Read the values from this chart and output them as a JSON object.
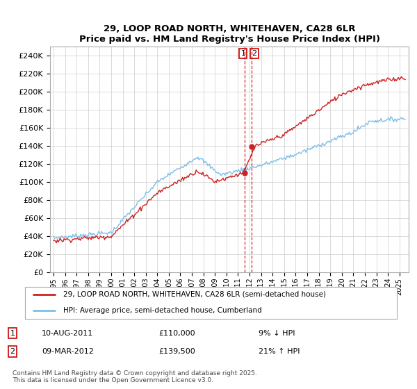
{
  "title": "29, LOOP ROAD NORTH, WHITEHAVEN, CA28 6LR",
  "subtitle": "Price paid vs. HM Land Registry's House Price Index (HPI)",
  "legend_line1": "29, LOOP ROAD NORTH, WHITEHAVEN, CA28 6LR (semi-detached house)",
  "legend_line2": "HPI: Average price, semi-detached house, Cumberland",
  "annotation1_date": "10-AUG-2011",
  "annotation1_price": "£110,000",
  "annotation1_change": "9% ↓ HPI",
  "annotation2_date": "09-MAR-2012",
  "annotation2_price": "£139,500",
  "annotation2_change": "21% ↑ HPI",
  "footer": "Contains HM Land Registry data © Crown copyright and database right 2025.\nThis data is licensed under the Open Government Licence v3.0.",
  "hpi_color": "#7bbfea",
  "price_color": "#cc2222",
  "vline_color": "#cc0000",
  "ylim": [
    0,
    250000
  ],
  "yticks": [
    0,
    20000,
    40000,
    60000,
    80000,
    100000,
    120000,
    140000,
    160000,
    180000,
    200000,
    220000,
    240000
  ],
  "xlim_start": 1994.7,
  "xlim_end": 2025.8,
  "xtick_years": [
    1995,
    1996,
    1997,
    1998,
    1999,
    2000,
    2001,
    2002,
    2003,
    2004,
    2005,
    2006,
    2007,
    2008,
    2009,
    2010,
    2011,
    2012,
    2013,
    2014,
    2015,
    2016,
    2017,
    2018,
    2019,
    2020,
    2021,
    2022,
    2023,
    2024,
    2025
  ],
  "t1_x": 2011.6,
  "t2_x": 2012.17,
  "t1_y": 110000,
  "t2_y": 139500,
  "background_color": "#ffffff",
  "grid_color": "#cccccc",
  "figwidth": 6.0,
  "figheight": 5.6,
  "dpi": 100
}
